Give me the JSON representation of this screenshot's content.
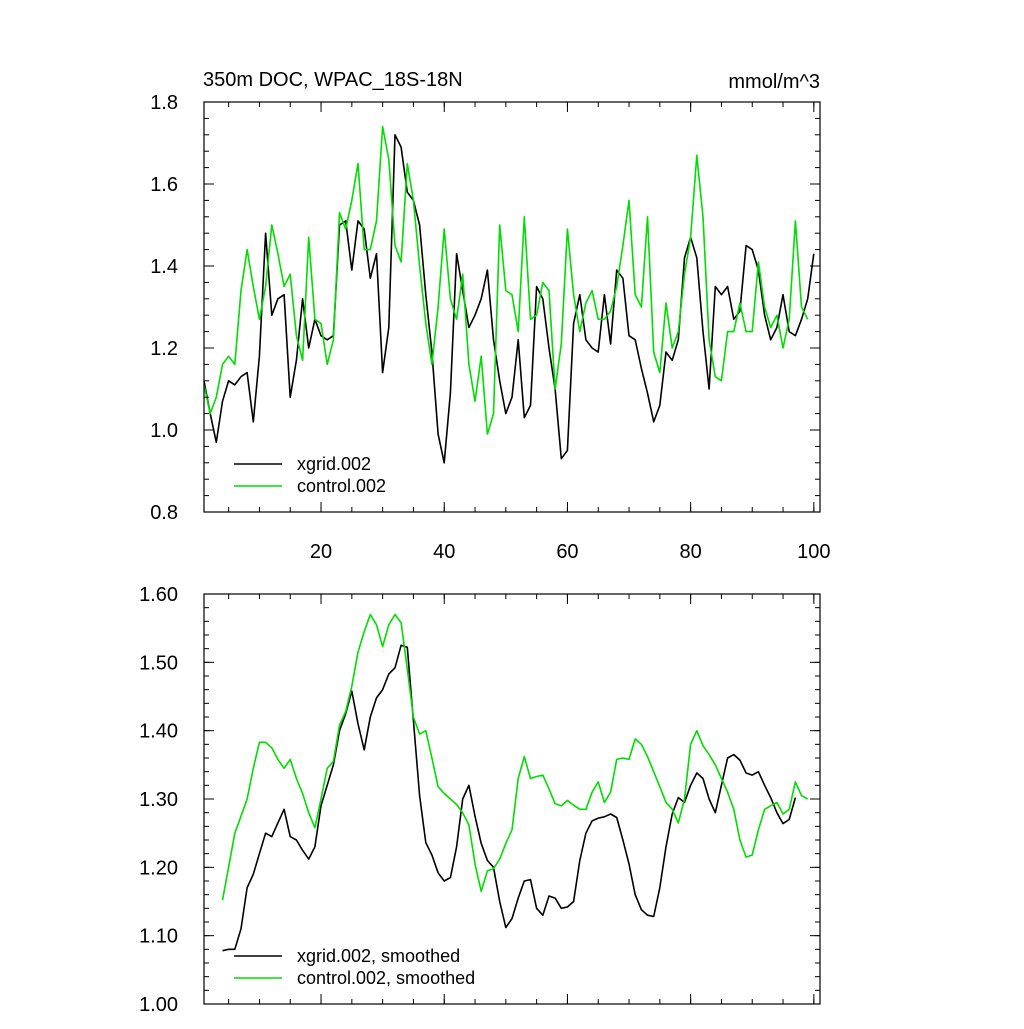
{
  "chart_data": [
    {
      "type": "line",
      "title": "350m DOC, WPAC_18S-18N",
      "units": "mmol/m^3",
      "xlim": [
        1,
        101
      ],
      "ylim": [
        0.8,
        1.8
      ],
      "xticks": [
        20,
        40,
        60,
        80,
        100
      ],
      "yticks": [
        0.8,
        1.0,
        1.2,
        1.4,
        1.6,
        1.8
      ],
      "x_start": 1,
      "legend_position": "bottom-left",
      "series": [
        {
          "name": "xgrid.002",
          "color": "#000000",
          "values": [
            1.12,
            1.04,
            0.97,
            1.07,
            1.12,
            1.11,
            1.13,
            1.14,
            1.02,
            1.18,
            1.48,
            1.28,
            1.32,
            1.33,
            1.08,
            1.17,
            1.32,
            1.2,
            1.27,
            1.23,
            1.22,
            1.23,
            1.5,
            1.51,
            1.39,
            1.51,
            1.49,
            1.37,
            1.43,
            1.14,
            1.25,
            1.72,
            1.69,
            1.58,
            1.56,
            1.5,
            1.33,
            1.19,
            0.99,
            0.92,
            1.09,
            1.43,
            1.34,
            1.25,
            1.28,
            1.32,
            1.39,
            1.22,
            1.12,
            1.04,
            1.08,
            1.22,
            1.03,
            1.06,
            1.35,
            1.32,
            1.2,
            1.1,
            0.93,
            0.95,
            1.26,
            1.33,
            1.22,
            1.2,
            1.19,
            1.33,
            1.21,
            1.39,
            1.37,
            1.23,
            1.22,
            1.15,
            1.09,
            1.02,
            1.06,
            1.19,
            1.17,
            1.22,
            1.42,
            1.47,
            1.42,
            1.24,
            1.1,
            1.35,
            1.33,
            1.35,
            1.27,
            1.29,
            1.45,
            1.44,
            1.39,
            1.28,
            1.22,
            1.25,
            1.33,
            1.24,
            1.23,
            1.27,
            1.32,
            1.43
          ]
        },
        {
          "name": "control.002",
          "color": "#00dd00",
          "values": [
            1.11,
            1.04,
            1.08,
            1.16,
            1.18,
            1.16,
            1.34,
            1.44,
            1.35,
            1.27,
            1.35,
            1.5,
            1.43,
            1.35,
            1.38,
            1.23,
            1.17,
            1.47,
            1.27,
            1.26,
            1.16,
            1.22,
            1.53,
            1.49,
            1.56,
            1.65,
            1.44,
            1.44,
            1.51,
            1.74,
            1.66,
            1.45,
            1.41,
            1.65,
            1.56,
            1.4,
            1.26,
            1.16,
            1.3,
            1.49,
            1.32,
            1.27,
            1.38,
            1.16,
            1.07,
            1.18,
            0.99,
            1.04,
            1.5,
            1.34,
            1.33,
            1.24,
            1.52,
            1.27,
            1.28,
            1.36,
            1.34,
            1.1,
            1.21,
            1.49,
            1.33,
            1.24,
            1.31,
            1.34,
            1.27,
            1.27,
            1.29,
            1.35,
            1.45,
            1.56,
            1.33,
            1.3,
            1.52,
            1.19,
            1.14,
            1.31,
            1.2,
            1.24,
            1.38,
            1.47,
            1.67,
            1.52,
            1.22,
            1.13,
            1.12,
            1.24,
            1.24,
            1.31,
            1.24,
            1.24,
            1.41,
            1.3,
            1.25,
            1.28,
            1.2,
            1.27,
            1.51,
            1.3,
            1.27
          ]
        }
      ]
    },
    {
      "type": "line",
      "xlim": [
        1,
        101
      ],
      "ylim": [
        1.0,
        1.6
      ],
      "xticks": [
        20,
        40,
        60,
        80,
        100
      ],
      "yticks": [
        1.0,
        1.1,
        1.2,
        1.3,
        1.4,
        1.5,
        1.6
      ],
      "ytick_labels": [
        "1.00",
        "1.10",
        "1.20",
        "1.30",
        "1.40",
        "1.50",
        "1.60"
      ],
      "x_start": 4,
      "legend_position": "bottom-left",
      "series": [
        {
          "name": "xgrid.002, smoothed",
          "color": "#000000",
          "values": [
            1.078,
            1.08,
            1.08,
            1.11,
            1.17,
            1.19,
            1.22,
            1.25,
            1.245,
            1.265,
            1.285,
            1.245,
            1.24,
            1.225,
            1.212,
            1.23,
            1.29,
            1.32,
            1.35,
            1.4,
            1.425,
            1.458,
            1.41,
            1.372,
            1.42,
            1.448,
            1.46,
            1.483,
            1.492,
            1.525,
            1.522,
            1.415,
            1.305,
            1.236,
            1.218,
            1.192,
            1.18,
            1.185,
            1.23,
            1.3,
            1.32,
            1.275,
            1.235,
            1.21,
            1.2,
            1.15,
            1.112,
            1.125,
            1.155,
            1.18,
            1.182,
            1.14,
            1.13,
            1.158,
            1.155,
            1.14,
            1.142,
            1.15,
            1.21,
            1.25,
            1.268,
            1.272,
            1.274,
            1.278,
            1.273,
            1.24,
            1.205,
            1.16,
            1.138,
            1.13,
            1.128,
            1.17,
            1.23,
            1.278,
            1.302,
            1.295,
            1.32,
            1.338,
            1.33,
            1.3,
            1.28,
            1.32,
            1.36,
            1.365,
            1.357,
            1.338,
            1.335,
            1.34,
            1.32,
            1.302,
            1.28,
            1.264,
            1.27,
            1.302
          ]
        },
        {
          "name": "control.002, smoothed",
          "color": "#00dd00",
          "values": [
            1.152,
            1.2,
            1.25,
            1.275,
            1.3,
            1.345,
            1.383,
            1.383,
            1.375,
            1.358,
            1.345,
            1.358,
            1.33,
            1.308,
            1.28,
            1.258,
            1.3,
            1.345,
            1.355,
            1.408,
            1.428,
            1.465,
            1.515,
            1.545,
            1.57,
            1.555,
            1.523,
            1.555,
            1.57,
            1.558,
            1.49,
            1.42,
            1.395,
            1.4,
            1.36,
            1.318,
            1.308,
            1.3,
            1.292,
            1.28,
            1.262,
            1.205,
            1.165,
            1.195,
            1.198,
            1.212,
            1.235,
            1.255,
            1.33,
            1.362,
            1.33,
            1.333,
            1.335,
            1.315,
            1.293,
            1.29,
            1.298,
            1.291,
            1.285,
            1.285,
            1.31,
            1.325,
            1.295,
            1.31,
            1.358,
            1.36,
            1.358,
            1.388,
            1.38,
            1.362,
            1.34,
            1.318,
            1.295,
            1.285,
            1.265,
            1.3,
            1.38,
            1.4,
            1.378,
            1.365,
            1.35,
            1.33,
            1.31,
            1.285,
            1.24,
            1.215,
            1.218,
            1.255,
            1.285,
            1.29,
            1.295,
            1.278,
            1.285,
            1.325,
            1.305,
            1.3
          ]
        }
      ]
    }
  ]
}
